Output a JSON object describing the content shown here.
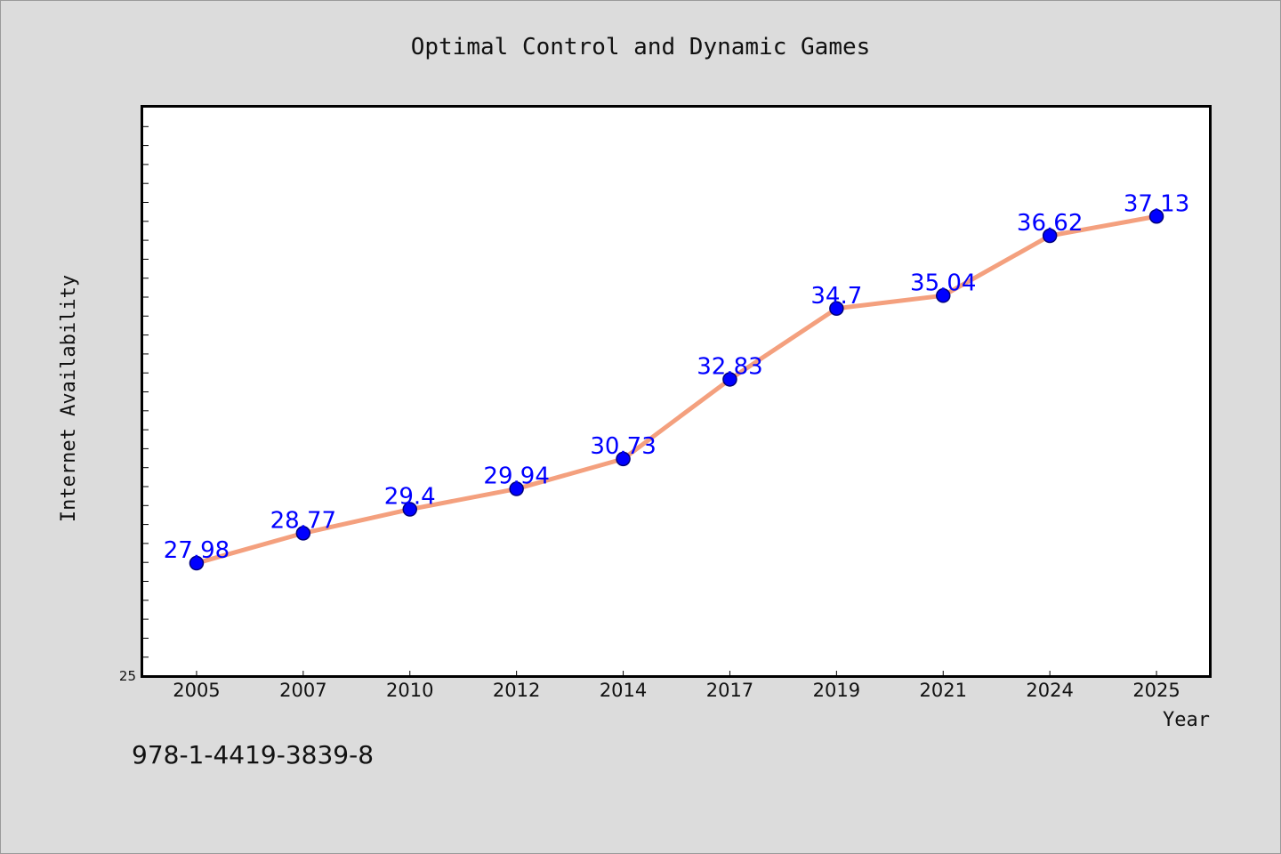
{
  "chart_data": {
    "type": "line",
    "title": "Optimal Control and Dynamic Games",
    "xlabel": "Year",
    "ylabel": "Internet Availability",
    "categories": [
      "2005",
      "2007",
      "2010",
      "2012",
      "2014",
      "2017",
      "2019",
      "2021",
      "2024",
      "2025"
    ],
    "series": [
      {
        "values": [
          27.98,
          28.77,
          29.4,
          29.94,
          30.73,
          32.83,
          34.7,
          35.04,
          36.62,
          37.13
        ],
        "labels": [
          "27.98",
          "28.77",
          "29.4",
          "29.94",
          "30.73",
          "32.83",
          "34.7",
          "35.04",
          "36.62",
          "37.13"
        ]
      }
    ],
    "ylim": [
      25,
      40
    ],
    "ytick_labels": [
      "25"
    ],
    "grid": false,
    "legend": false,
    "colors": {
      "line": "#f4a07e",
      "marker": "#0000ff",
      "marker_edge": "#00007a",
      "data_label": "#0000ff",
      "plot_background": "#ffffff",
      "figure_background": "#dcdcdc"
    }
  },
  "footnote": "978-1-4419-3839-8"
}
